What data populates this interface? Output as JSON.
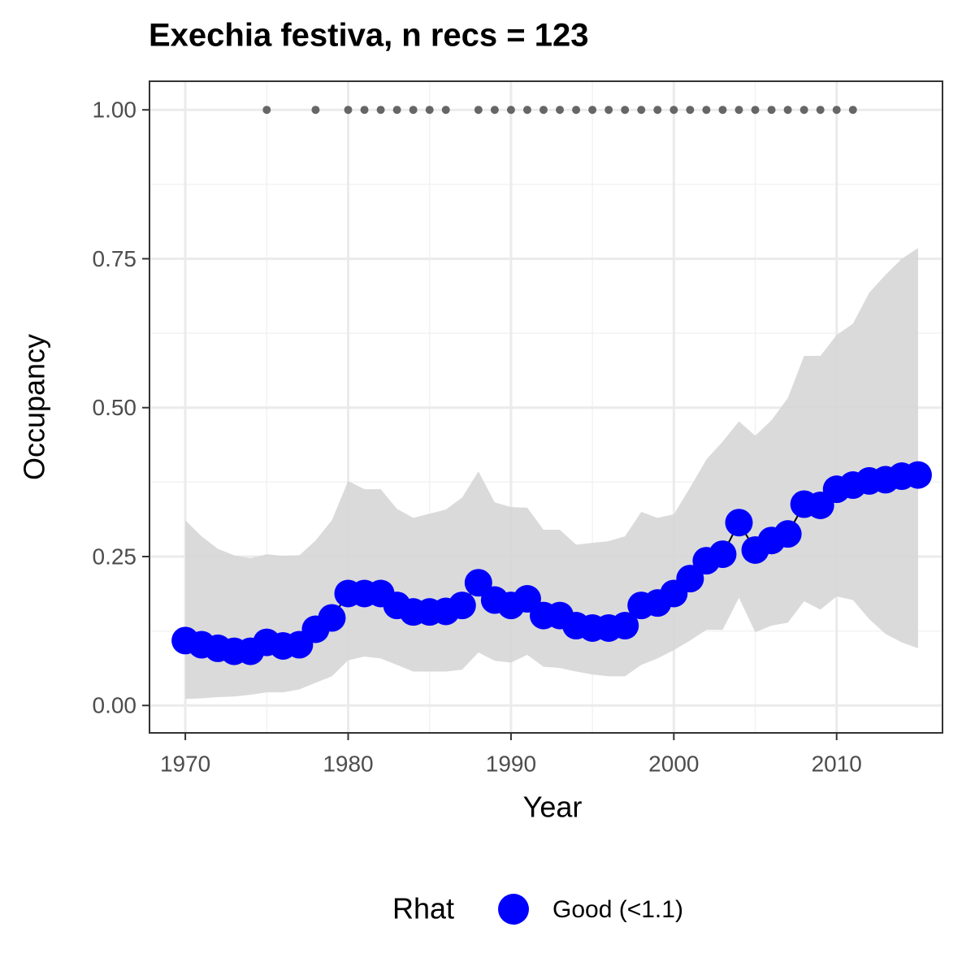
{
  "chart_data": {
    "type": "line",
    "title": "Exechia festiva, n recs = 123",
    "x_label": "Year",
    "y_label": "Occupancy",
    "legend_title": "Rhat",
    "x": [
      1970,
      1971,
      1972,
      1973,
      1974,
      1975,
      1976,
      1977,
      1978,
      1979,
      1980,
      1981,
      1982,
      1983,
      1984,
      1985,
      1986,
      1987,
      1988,
      1989,
      1990,
      1991,
      1992,
      1993,
      1994,
      1995,
      1996,
      1997,
      1998,
      1999,
      2000,
      2001,
      2002,
      2003,
      2004,
      2005,
      2006,
      2007,
      2008,
      2009,
      2010,
      2011,
      2012,
      2013,
      2014,
      2015
    ],
    "series": [
      {
        "name": "Good (<1.1)",
        "color": "#0000ff",
        "values": [
          0.109,
          0.102,
          0.096,
          0.091,
          0.091,
          0.106,
          0.1,
          0.102,
          0.128,
          0.147,
          0.188,
          0.188,
          0.188,
          0.168,
          0.157,
          0.157,
          0.158,
          0.168,
          0.206,
          0.177,
          0.168,
          0.179,
          0.151,
          0.151,
          0.134,
          0.13,
          0.13,
          0.134,
          0.168,
          0.172,
          0.188,
          0.213,
          0.243,
          0.254,
          0.307,
          0.261,
          0.277,
          0.288,
          0.338,
          0.336,
          0.363,
          0.37,
          0.377,
          0.379,
          0.385,
          0.387
        ]
      }
    ],
    "ribbon": {
      "color": "#d6d6d6",
      "upper": [
        0.311,
        0.284,
        0.263,
        0.252,
        0.247,
        0.254,
        0.251,
        0.252,
        0.277,
        0.311,
        0.377,
        0.363,
        0.363,
        0.33,
        0.315,
        0.322,
        0.329,
        0.349,
        0.393,
        0.341,
        0.333,
        0.332,
        0.295,
        0.295,
        0.27,
        0.273,
        0.276,
        0.284,
        0.325,
        0.315,
        0.321,
        0.366,
        0.413,
        0.443,
        0.477,
        0.453,
        0.479,
        0.516,
        0.587,
        0.587,
        0.622,
        0.641,
        0.693,
        0.723,
        0.75,
        0.768
      ],
      "lower": [
        0.011,
        0.012,
        0.014,
        0.015,
        0.018,
        0.022,
        0.022,
        0.027,
        0.038,
        0.049,
        0.076,
        0.082,
        0.079,
        0.068,
        0.057,
        0.057,
        0.057,
        0.06,
        0.089,
        0.075,
        0.072,
        0.085,
        0.065,
        0.063,
        0.057,
        0.052,
        0.049,
        0.049,
        0.068,
        0.079,
        0.093,
        0.109,
        0.127,
        0.127,
        0.181,
        0.123,
        0.134,
        0.139,
        0.175,
        0.161,
        0.183,
        0.177,
        0.145,
        0.12,
        0.106,
        0.096
      ]
    },
    "records": {
      "color": "#666666",
      "x": [
        1975,
        1978,
        1980,
        1981,
        1982,
        1983,
        1984,
        1985,
        1986,
        1988,
        1989,
        1990,
        1991,
        1992,
        1993,
        1994,
        1995,
        1996,
        1997,
        1998,
        1999,
        2000,
        2001,
        2002,
        2003,
        2004,
        2005,
        2006,
        2007,
        2008,
        2009,
        2010,
        2011
      ],
      "values": [
        1,
        1,
        1,
        1,
        1,
        1,
        1,
        1,
        1,
        1,
        1,
        1,
        1,
        1,
        1,
        1,
        1,
        1,
        1,
        1,
        1,
        1,
        1,
        1,
        1,
        1,
        1,
        1,
        1,
        1,
        1,
        1,
        1
      ]
    },
    "xlim": [
      1967.8,
      2016.5
    ],
    "ylim": [
      -0.046,
      1.048
    ],
    "xticks": [
      1970,
      1980,
      1990,
      2000,
      2010
    ],
    "yticks": [
      {
        "value": 0,
        "label": "0.00"
      },
      {
        "value": 0.25,
        "label": "0.25"
      },
      {
        "value": 0.5,
        "label": "0.50"
      },
      {
        "value": 0.75,
        "label": "0.75"
      },
      {
        "value": 1,
        "label": "1.00"
      }
    ],
    "grid": true,
    "legend_position": "bottom"
  }
}
